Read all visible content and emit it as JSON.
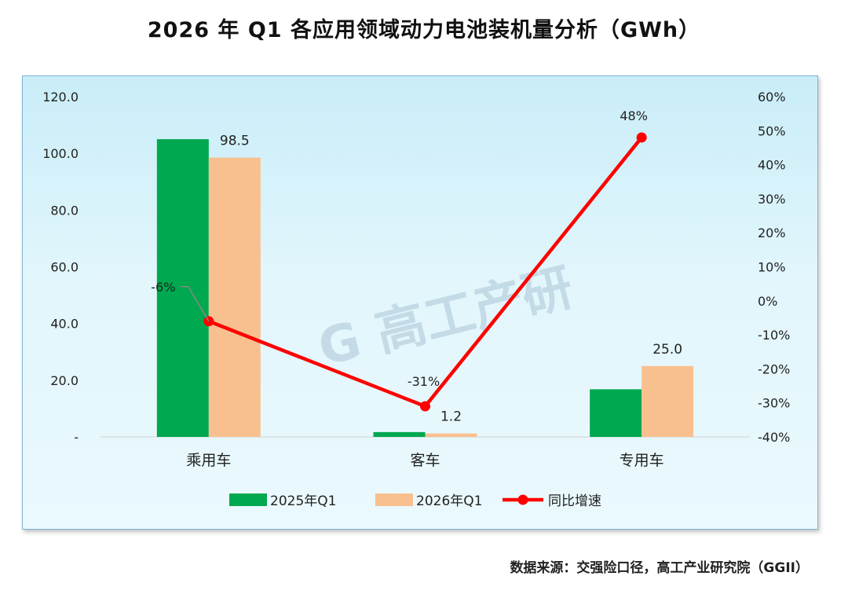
{
  "title": "2026 年 Q1 各应用领域动力电池装机量分析（GWh）",
  "source": "数据来源：交强险口径，高工产业研究院（GGII）",
  "watermark": "G 高工产研",
  "chart_data": {
    "type": "bar",
    "categories": [
      "乘用车",
      "客车",
      "专用车"
    ],
    "series": [
      {
        "name": "2025年Q1",
        "type": "bar",
        "axis": "left",
        "color": "#00a84f",
        "values": [
          105.0,
          1.7,
          16.8
        ]
      },
      {
        "name": "2026年Q1",
        "type": "bar",
        "axis": "left",
        "color": "#f8c08f",
        "values": [
          98.5,
          1.2,
          25.0
        ]
      },
      {
        "name": "同比增速",
        "type": "line",
        "axis": "right",
        "color": "#ff0000",
        "values": [
          -6,
          -31,
          48
        ]
      }
    ],
    "bar_labels": {
      "series": "2026年Q1",
      "texts": [
        "98.5",
        "1.2",
        "25.0"
      ]
    },
    "line_labels": [
      "-6%",
      "-31%",
      "48%"
    ],
    "y_left": {
      "ticks": [
        "-",
        "20.0",
        "40.0",
        "60.0",
        "80.0",
        "100.0",
        "120.0"
      ],
      "range": [
        0,
        120
      ]
    },
    "y_right": {
      "ticks": [
        "-40%",
        "-30%",
        "-20%",
        "-10%",
        "0%",
        "10%",
        "20%",
        "30%",
        "40%",
        "50%",
        "60%"
      ],
      "range": [
        -40,
        60
      ]
    },
    "legend_position": "bottom",
    "grid": false
  }
}
